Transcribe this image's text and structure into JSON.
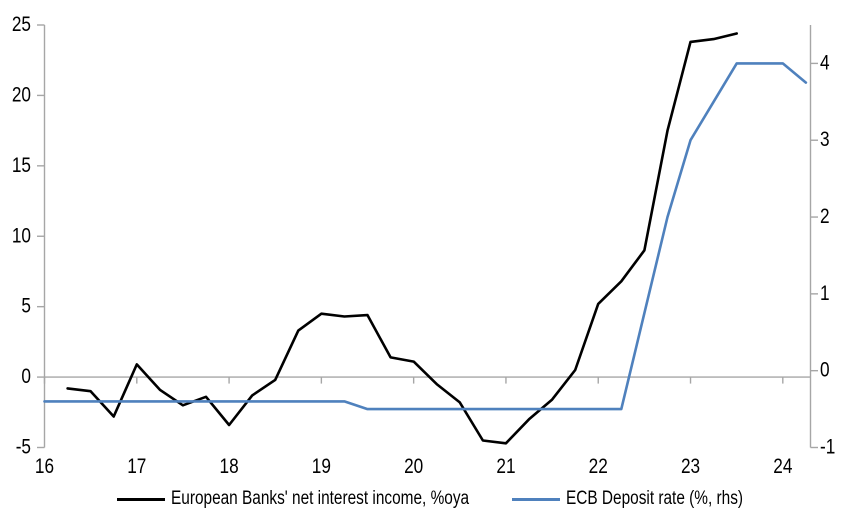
{
  "colors": {
    "background": "#FFFFFF",
    "axis": "#A6A6A6",
    "zero_line": "#A6A6A6",
    "text": "#000000",
    "nii_line": "#000000",
    "ecb_line": "#4F81BD"
  },
  "chart_data": {
    "type": "line",
    "grid": "zero-line-only",
    "legend_position": "bottom-center",
    "x_axis": {
      "min": 16,
      "max": 24.3,
      "tick_values": [
        16,
        17,
        18,
        19,
        20,
        21,
        22,
        23,
        24
      ],
      "tick_labels": [
        "16",
        "17",
        "18",
        "19",
        "20",
        "21",
        "22",
        "23",
        "24"
      ]
    },
    "left_axis": {
      "min": -5,
      "max": 25,
      "tick_values": [
        25,
        20,
        15,
        10,
        5,
        0,
        -5
      ],
      "tick_labels": [
        "25",
        "20",
        "15",
        "10",
        "5",
        "0",
        "-5"
      ]
    },
    "right_axis": {
      "min": -1,
      "max": 4.5,
      "tick_values": [
        4,
        3,
        2,
        1,
        0,
        -1
      ],
      "tick_labels": [
        "4",
        "3",
        "2",
        "1",
        "0",
        "-1"
      ]
    },
    "series": [
      {
        "name": "European Banks' net interest income, %oya",
        "axis": "left",
        "color": "#000000",
        "x": [
          16.25,
          16.5,
          16.75,
          17.0,
          17.25,
          17.5,
          17.75,
          18.0,
          18.25,
          18.5,
          18.75,
          19.0,
          19.25,
          19.5,
          19.75,
          20.0,
          20.25,
          20.5,
          20.75,
          21.0,
          21.25,
          21.5,
          21.75,
          22.0,
          22.25,
          22.5,
          22.75,
          23.0,
          23.25,
          23.5
        ],
        "values": [
          -0.8,
          -1.0,
          -2.8,
          0.9,
          -0.9,
          -2.0,
          -1.4,
          -3.4,
          -1.3,
          -0.2,
          3.3,
          4.5,
          4.3,
          4.4,
          1.4,
          1.1,
          -0.5,
          -1.8,
          -4.5,
          -4.7,
          -3.0,
          -1.6,
          0.5,
          5.2,
          6.8,
          9.0,
          17.5,
          23.8,
          24.0,
          24.4
        ]
      },
      {
        "name": "ECB Deposit rate (%, rhs)",
        "axis": "right",
        "color": "#4F81BD",
        "x": [
          16.0,
          16.25,
          16.5,
          16.75,
          17.0,
          17.25,
          17.5,
          17.75,
          18.0,
          18.25,
          18.5,
          18.75,
          19.0,
          19.25,
          19.5,
          19.75,
          20.0,
          20.25,
          20.5,
          20.75,
          21.0,
          21.25,
          21.5,
          21.75,
          22.0,
          22.25,
          22.5,
          22.75,
          23.0,
          23.25,
          23.5,
          23.75,
          24.0,
          24.25
        ],
        "values": [
          -0.4,
          -0.4,
          -0.4,
          -0.4,
          -0.4,
          -0.4,
          -0.4,
          -0.4,
          -0.4,
          -0.4,
          -0.4,
          -0.4,
          -0.4,
          -0.4,
          -0.5,
          -0.5,
          -0.5,
          -0.5,
          -0.5,
          -0.5,
          -0.5,
          -0.5,
          -0.5,
          -0.5,
          -0.5,
          -0.5,
          0.75,
          2.0,
          3.0,
          3.5,
          4.0,
          4.0,
          4.0,
          3.75
        ]
      }
    ]
  },
  "legend": {
    "items": [
      {
        "label": "European Banks' net interest income, %oya"
      },
      {
        "label": "ECB Deposit rate (%, rhs)"
      }
    ]
  }
}
